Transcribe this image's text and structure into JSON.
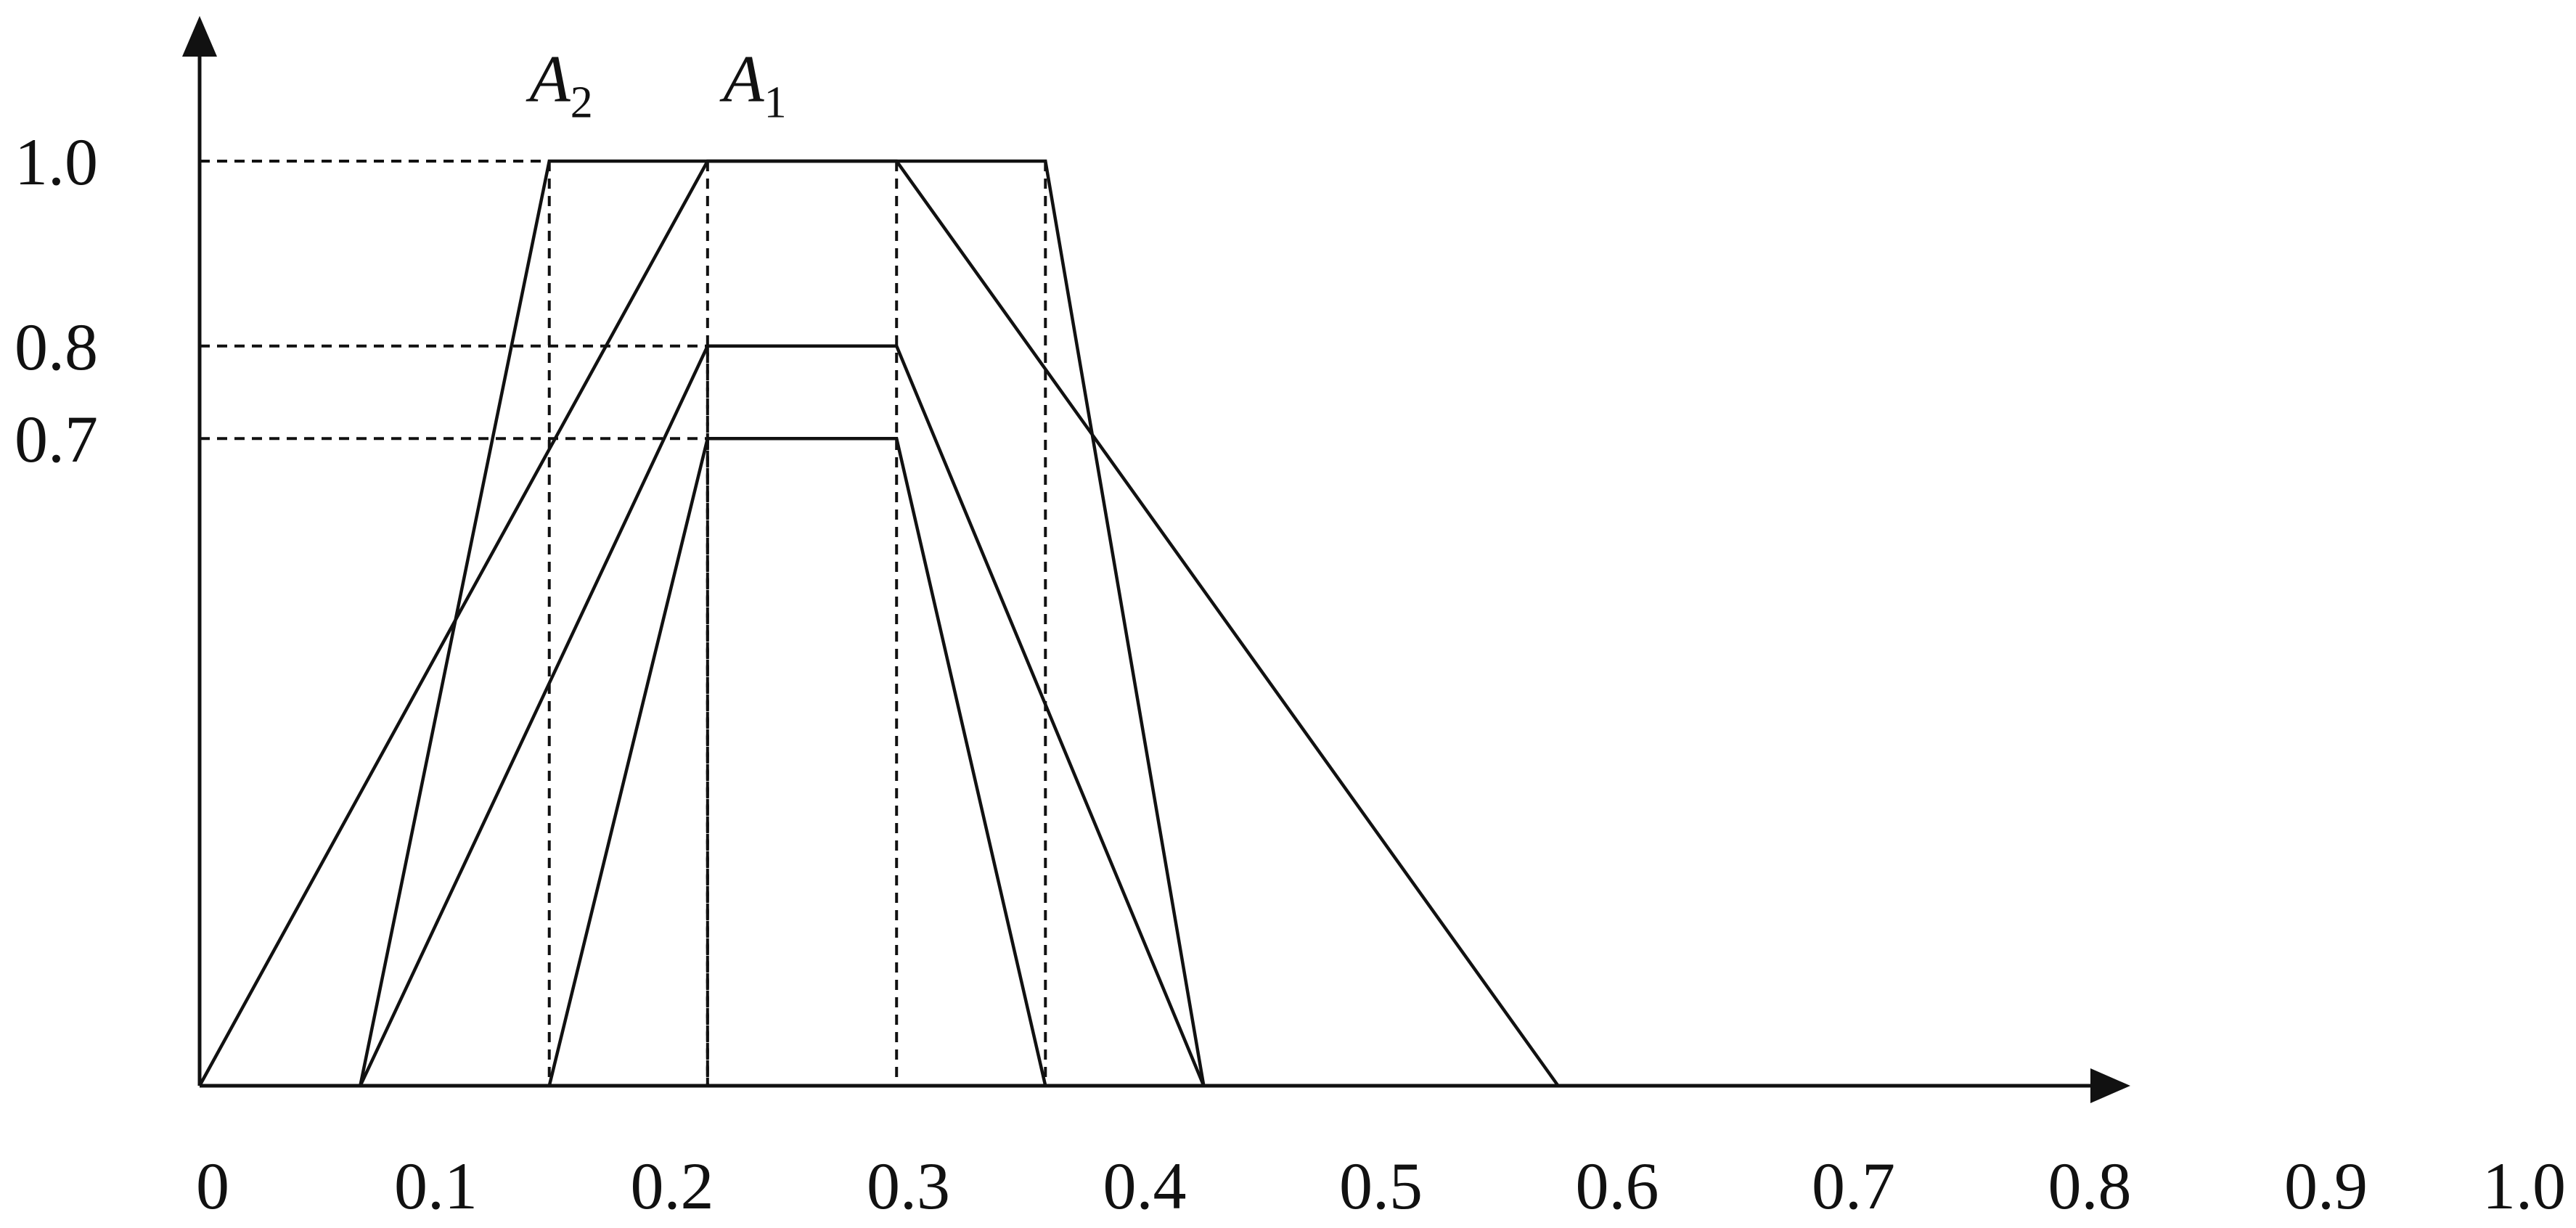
{
  "chart_data": {
    "type": "line",
    "x_tick_labels": [
      "0",
      "0.1",
      "0.2",
      "0.3",
      "0.4",
      "0.5",
      "0.6",
      "0.7",
      "0.8",
      "0.9",
      "1.0"
    ],
    "y_tick_labels": [
      "1.0",
      "0.8",
      "0.7"
    ],
    "y_ticks": [
      1.0,
      0.8,
      0.7
    ],
    "xlim": [
      0,
      1.0
    ],
    "ylim": [
      0,
      1.0
    ],
    "grid": false,
    "curve_labels": [
      {
        "letter": "A",
        "subscript": "2",
        "x": 0.155,
        "y": 1.1
      },
      {
        "letter": "A",
        "subscript": "1",
        "x": 0.237,
        "y": 1.1
      }
    ],
    "series": [
      {
        "x": [
          0.0,
          0.215,
          0.295,
          0.575
        ],
        "y": [
          0,
          1.0,
          1.0,
          0
        ]
      },
      {
        "x": [
          0.068,
          0.148,
          0.358,
          0.425
        ],
        "y": [
          0,
          1.0,
          1.0,
          0
        ]
      },
      {
        "x": [
          0.068,
          0.215,
          0.295,
          0.425
        ],
        "y": [
          0,
          0.8,
          0.8,
          0
        ]
      },
      {
        "x": [
          0.148,
          0.215,
          0.295,
          0.358
        ],
        "y": [
          0,
          0.7,
          0.7,
          0
        ]
      }
    ],
    "guides": [
      {
        "x": 0.148,
        "y": 1.0
      },
      {
        "x": 0.215,
        "y": 1.0
      },
      {
        "x": 0.295,
        "y": 1.0
      },
      {
        "x": 0.358,
        "y": 1.0
      },
      {
        "x": 0.215,
        "y": 0.8
      },
      {
        "x": 0.215,
        "y": 0.7
      }
    ]
  }
}
